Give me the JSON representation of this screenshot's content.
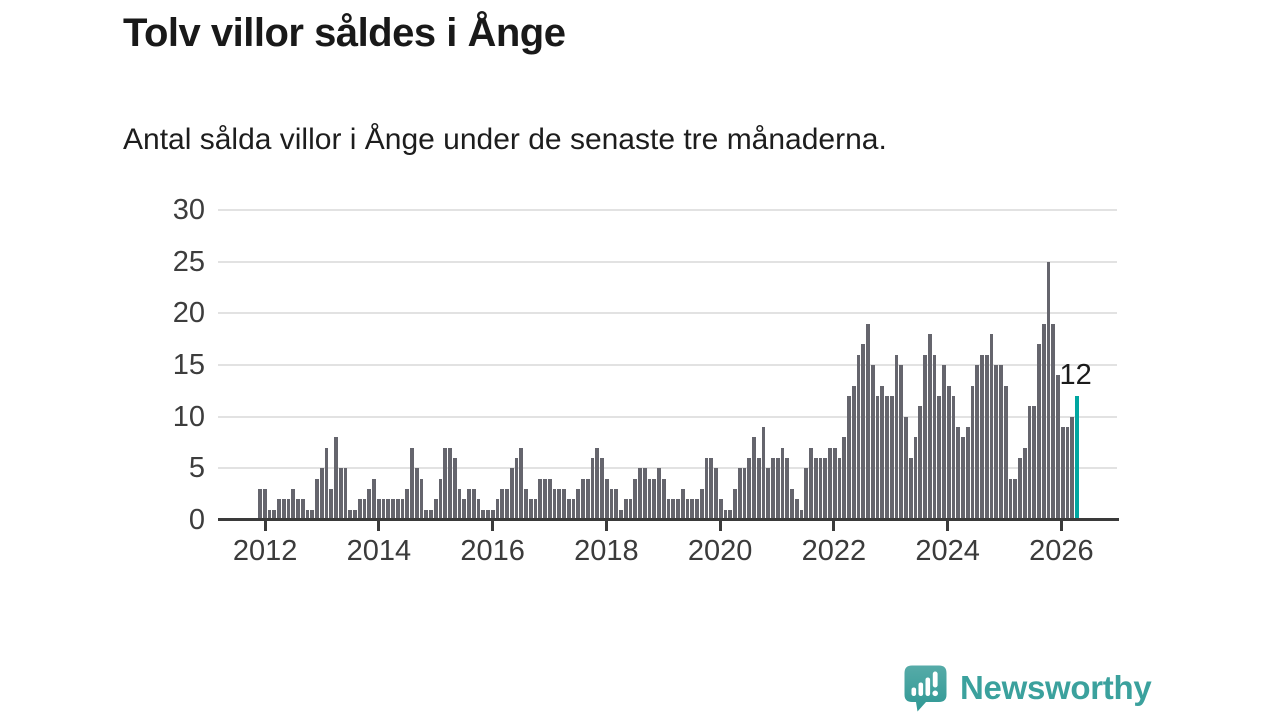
{
  "header": {
    "title": "Tolv villor såldes i Ånge",
    "subtitle": "Antal sålda villor i Ånge under de senaste tre månaderna."
  },
  "chart_data": {
    "type": "bar",
    "title": "Tolv villor såldes i Ånge",
    "description": "Antal sålda villor i Ånge under de senaste tre månaderna.",
    "frequency": "monthly rolling 3-month count",
    "start_month": "2011-12",
    "ylim": [
      0,
      30
    ],
    "grid": "horizontal",
    "y_ticks": [
      0,
      5,
      10,
      15,
      20,
      25,
      30
    ],
    "x_ticks": [
      {
        "label": "2012",
        "index": 1
      },
      {
        "label": "2014",
        "index": 25
      },
      {
        "label": "2016",
        "index": 49
      },
      {
        "label": "2018",
        "index": 73
      },
      {
        "label": "2020",
        "index": 97
      },
      {
        "label": "2022",
        "index": 121
      },
      {
        "label": "2024",
        "index": 145
      },
      {
        "label": "2026",
        "index": 169
      }
    ],
    "values": [
      3,
      3,
      1,
      1,
      2,
      2,
      2,
      3,
      2,
      2,
      1,
      1,
      4,
      5,
      7,
      3,
      8,
      5,
      5,
      1,
      1,
      2,
      2,
      3,
      4,
      2,
      2,
      2,
      2,
      2,
      2,
      3,
      7,
      5,
      4,
      1,
      1,
      2,
      4,
      7,
      7,
      6,
      3,
      2,
      3,
      3,
      2,
      1,
      1,
      1,
      2,
      3,
      3,
      5,
      6,
      7,
      3,
      2,
      2,
      4,
      4,
      4,
      3,
      3,
      3,
      2,
      2,
      3,
      4,
      4,
      6,
      7,
      6,
      4,
      3,
      3,
      1,
      2,
      2,
      4,
      5,
      5,
      4,
      4,
      5,
      4,
      2,
      2,
      2,
      3,
      2,
      2,
      2,
      3,
      6,
      6,
      5,
      2,
      1,
      1,
      3,
      5,
      5,
      6,
      8,
      6,
      9,
      5,
      6,
      6,
      7,
      6,
      3,
      2,
      1,
      5,
      7,
      6,
      6,
      6,
      7,
      7,
      6,
      8,
      12,
      13,
      16,
      17,
      19,
      15,
      12,
      13,
      12,
      12,
      16,
      15,
      10,
      6,
      8,
      11,
      16,
      18,
      16,
      12,
      15,
      13,
      12,
      9,
      8,
      9,
      13,
      15,
      16,
      16,
      18,
      15,
      15,
      13,
      4,
      4,
      6,
      7,
      11,
      11,
      17,
      19,
      25,
      19,
      14,
      9,
      9,
      10,
      12
    ],
    "bar_color": "#65656d",
    "highlight": {
      "index": 172,
      "value": 12,
      "label": "12",
      "color": "#00a6a0"
    }
  },
  "footer": {
    "brand": "Newsworthy"
  },
  "colors": {
    "accent_teal": "#00a6a0",
    "bar_gray": "#65656d",
    "grid": "#e2e2e2",
    "axis": "#3a3a3a",
    "brand_teal": "#3ba19d",
    "text": "#191919"
  }
}
